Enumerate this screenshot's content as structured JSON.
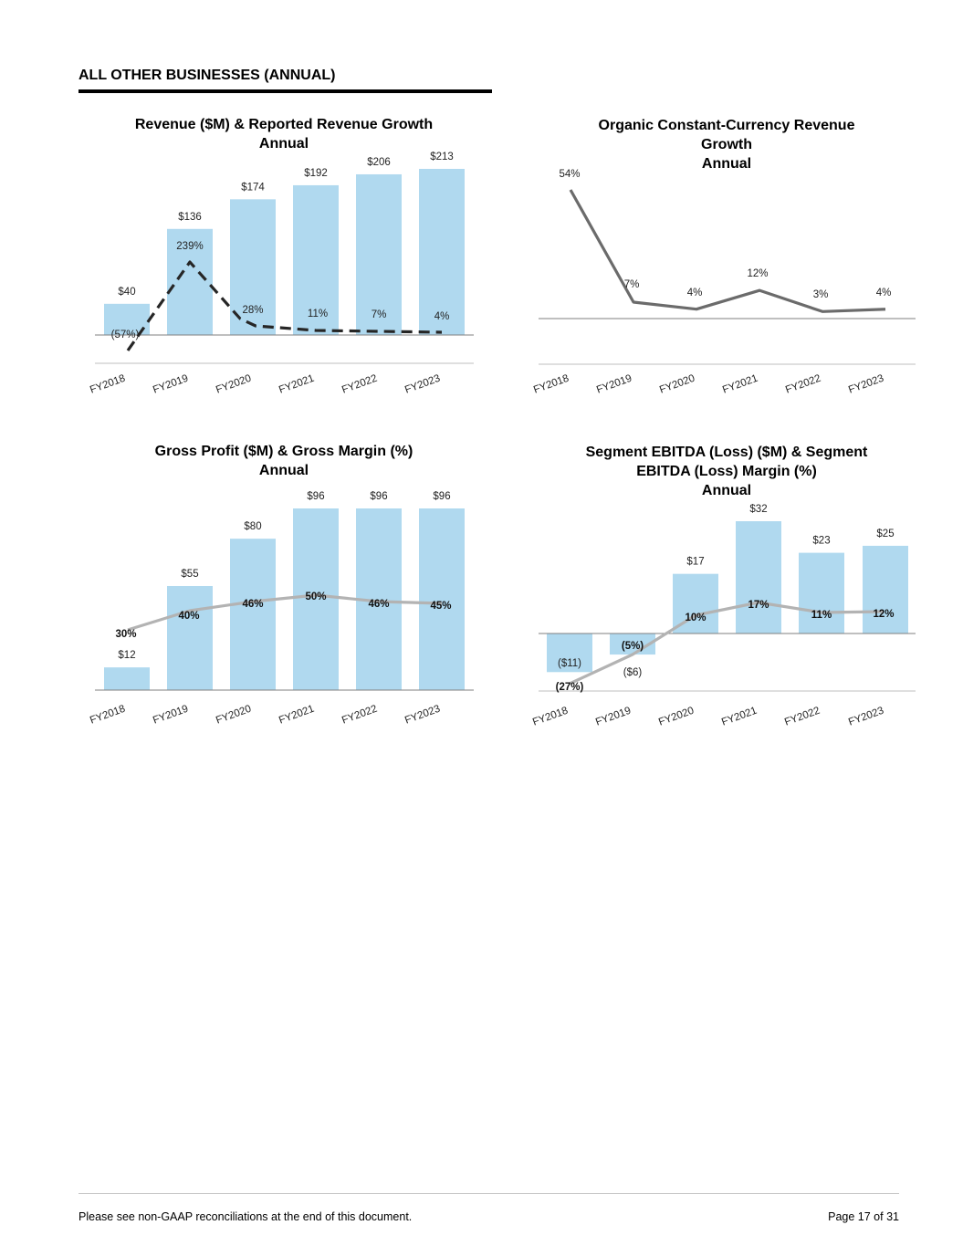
{
  "header": {
    "section_title": "ALL OTHER BUSINESSES (ANNUAL)"
  },
  "footer": {
    "note": "Please see non-GAAP reconciliations at the end of this document.",
    "page": "Page 17 of 31"
  },
  "colors": {
    "bar": "#b0d9ef",
    "axis": "#7f7f7f",
    "dark_line": "#262626",
    "organic_line": "#6b6b6b",
    "light_line": "#b3b3b3"
  },
  "chart_data": [
    {
      "id": "revenue",
      "type": "bar",
      "title_lines": [
        "Revenue ($M) & Reported Revenue Growth",
        "Annual"
      ],
      "categories": [
        "FY2018",
        "FY2019",
        "FY2020",
        "FY2021",
        "FY2022",
        "FY2023"
      ],
      "series": [
        {
          "name": "Revenue ($M)",
          "kind": "bar",
          "values": [
            40,
            136,
            174,
            192,
            206,
            213
          ],
          "labels": [
            "$40",
            "$136",
            "$174",
            "$192",
            "$206",
            "$213"
          ]
        },
        {
          "name": "Reported Revenue Growth",
          "kind": "line",
          "style": "dashed",
          "values": [
            -57,
            239,
            28,
            11,
            7,
            4
          ],
          "labels": [
            "(57%)",
            "239%",
            "28%",
            "11%",
            "7%",
            "4%"
          ]
        }
      ]
    },
    {
      "id": "organic",
      "type": "line",
      "title_lines": [
        "Organic Constant-Currency Revenue",
        "Growth",
        "Annual"
      ],
      "categories": [
        "FY2018",
        "FY2019",
        "FY2020",
        "FY2021",
        "FY2022",
        "FY2023"
      ],
      "series": [
        {
          "name": "Organic Constant-Currency Revenue Growth",
          "kind": "line",
          "values": [
            54,
            7,
            4,
            12,
            3,
            4
          ],
          "labels": [
            "54%",
            "7%",
            "4%",
            "12%",
            "3%",
            "4%"
          ]
        }
      ]
    },
    {
      "id": "gross",
      "type": "bar",
      "title_lines": [
        "Gross Profit ($M) & Gross Margin (%)",
        "Annual"
      ],
      "categories": [
        "FY2018",
        "FY2019",
        "FY2020",
        "FY2021",
        "FY2022",
        "FY2023"
      ],
      "series": [
        {
          "name": "Gross Profit ($M)",
          "kind": "bar",
          "values": [
            12,
            55,
            80,
            96,
            96,
            96
          ],
          "labels": [
            "$12",
            "$55",
            "$80",
            "$96",
            "$96",
            "$96"
          ]
        },
        {
          "name": "Gross Margin (%)",
          "kind": "line",
          "values": [
            30,
            40,
            46,
            50,
            46,
            45
          ],
          "labels": [
            "30%",
            "40%",
            "46%",
            "50%",
            "46%",
            "45%"
          ]
        }
      ]
    },
    {
      "id": "ebitda",
      "type": "bar",
      "title_lines": [
        "Segment EBITDA (Loss) ($M) & Segment",
        "EBITDA (Loss) Margin (%)",
        "Annual"
      ],
      "categories": [
        "FY2018",
        "FY2019",
        "FY2020",
        "FY2021",
        "FY2022",
        "FY2023"
      ],
      "series": [
        {
          "name": "Segment EBITDA (Loss) ($M)",
          "kind": "bar",
          "values": [
            -11,
            -6,
            17,
            32,
            23,
            25
          ],
          "labels": [
            "($11)",
            "($6)",
            "$17",
            "$32",
            "$23",
            "$25"
          ]
        },
        {
          "name": "Segment EBITDA (Loss) Margin (%)",
          "kind": "line",
          "values": [
            -27,
            -5,
            10,
            17,
            11,
            12
          ],
          "labels": [
            "(27%)",
            "(5%)",
            "10%",
            "17%",
            "11%",
            "12%"
          ]
        }
      ]
    }
  ]
}
